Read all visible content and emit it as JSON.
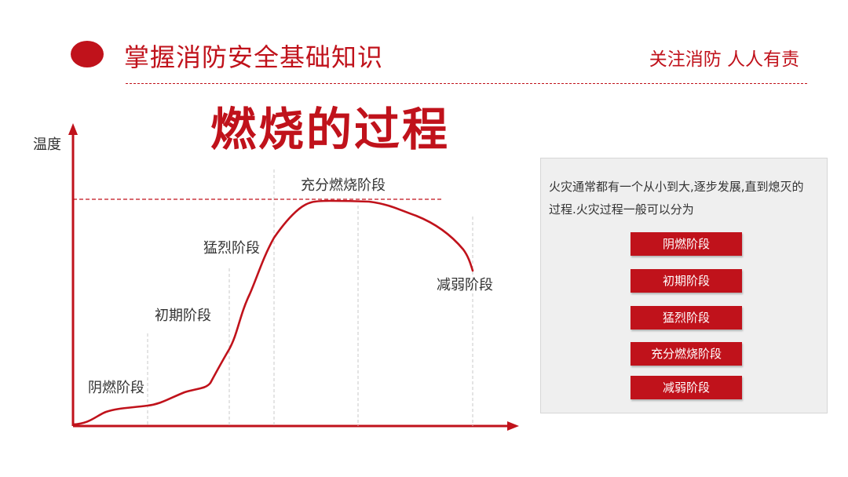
{
  "header": {
    "title": "掌握消防安全基础知识",
    "slogan": "关注消防  人人有责"
  },
  "main_title": "燃烧的过程",
  "diagram": {
    "y_axis_label": "温度",
    "stages": [
      "阴燃阶段",
      "初期阶段",
      "猛烈阶段",
      "充分燃烧阶段",
      "减弱阶段"
    ]
  },
  "info": {
    "description": "火灾通常都有一个从小到大,逐步发展,直到熄灭的过程.火灾过程一般可以分为",
    "buttons": [
      "阴燃阶段",
      "初期阶段",
      "猛烈阶段",
      "充分燃烧阶段",
      "减弱阶段"
    ]
  },
  "colors": {
    "accent": "#c0121b",
    "panel": "#efefef"
  }
}
